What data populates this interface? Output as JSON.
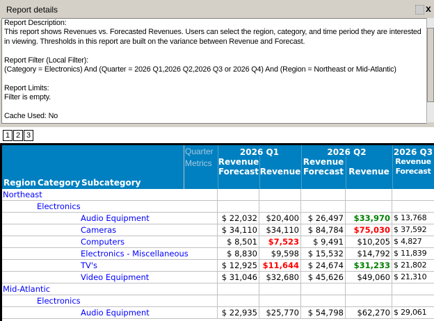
{
  "panel": {
    "title": "Report details",
    "minimize_icon": "minimize-icon",
    "close_label": "x"
  },
  "description": {
    "lines": [
      "Report Description:",
      "This report shows Revenues vs. Forecasted Revenues. Users can select the region, category, and time period they are interested",
      "in viewing. Thresholds in this report are built on the variance between Revenue and Forecast.",
      "",
      "Report Filter (Local Filter):",
      "(Category = Electronics) And (Quarter = 2026 Q1,2026 Q2,2026 Q3 or 2026 Q4) And (Region = Northeast or Mid-Atlantic)",
      "",
      "Report Limits:",
      "Filter is empty.",
      "",
      "Cache Used: No"
    ]
  },
  "pages": [
    "1",
    "2",
    "3"
  ],
  "grid": {
    "colors": {
      "header_bg": "#0080c0",
      "link": "#0000ff",
      "good": "#008000",
      "bad": "#ff0000"
    },
    "row_headers": [
      "Region",
      "Category",
      "Subcategory"
    ],
    "col_attr": [
      "Quarter",
      "Metrics"
    ],
    "quarters": [
      "2026 Q1",
      "2026 Q2",
      "2026 Q3"
    ],
    "metrics": [
      [
        "Revenue",
        "Forecast"
      ],
      [
        "Revenue",
        ""
      ],
      [
        "Revenue",
        "Forecast"
      ],
      [
        "Revenue",
        ""
      ],
      [
        "Revenue",
        "Forecast"
      ]
    ],
    "rows": [
      {
        "level": 0,
        "label": "Northeast",
        "cells": []
      },
      {
        "level": 1,
        "label": "Electronics",
        "cells": []
      },
      {
        "level": 2,
        "label": "Audio Equipment",
        "cells": [
          "$ 22,032",
          "$20,400",
          "$ 26,497",
          "$33,970",
          "$ 13,768"
        ],
        "status": [
          "",
          "",
          "",
          "good",
          ""
        ]
      },
      {
        "level": 2,
        "label": "Cameras",
        "cells": [
          "$ 34,110",
          "$34,110",
          "$ 84,784",
          "$75,030",
          "$ 37,592"
        ],
        "status": [
          "",
          "",
          "",
          "bad",
          ""
        ]
      },
      {
        "level": 2,
        "label": "Computers",
        "cells": [
          "$ 8,501",
          "$7,523",
          "$ 9,491",
          "$10,205",
          "$ 4,827"
        ],
        "status": [
          "",
          "bad",
          "",
          "",
          ""
        ]
      },
      {
        "level": 2,
        "label": "Electronics - Miscellaneous",
        "cells": [
          "$ 8,830",
          "$9,598",
          "$ 15,532",
          "$14,792",
          "$ 11,839"
        ],
        "status": [
          "",
          "",
          "",
          "",
          ""
        ]
      },
      {
        "level": 2,
        "label": "TV's",
        "cells": [
          "$ 12,925",
          "$11,644",
          "$ 24,674",
          "$31,233",
          "$ 21,802"
        ],
        "status": [
          "",
          "bad",
          "",
          "good",
          ""
        ]
      },
      {
        "level": 2,
        "label": "Video Equipment",
        "cells": [
          "$ 31,046",
          "$32,680",
          "$ 45,626",
          "$49,060",
          "$ 21,310"
        ],
        "status": [
          "",
          "",
          "",
          "",
          ""
        ]
      },
      {
        "level": 0,
        "label": "Mid-Atlantic",
        "cells": []
      },
      {
        "level": 1,
        "label": "Electronics",
        "cells": []
      },
      {
        "level": 2,
        "label": "Audio Equipment",
        "cells": [
          "$ 22,935",
          "$25,770",
          "$ 54,798",
          "$62,270",
          "$ 29,061"
        ],
        "status": [
          "",
          "",
          "",
          "",
          ""
        ]
      }
    ]
  }
}
